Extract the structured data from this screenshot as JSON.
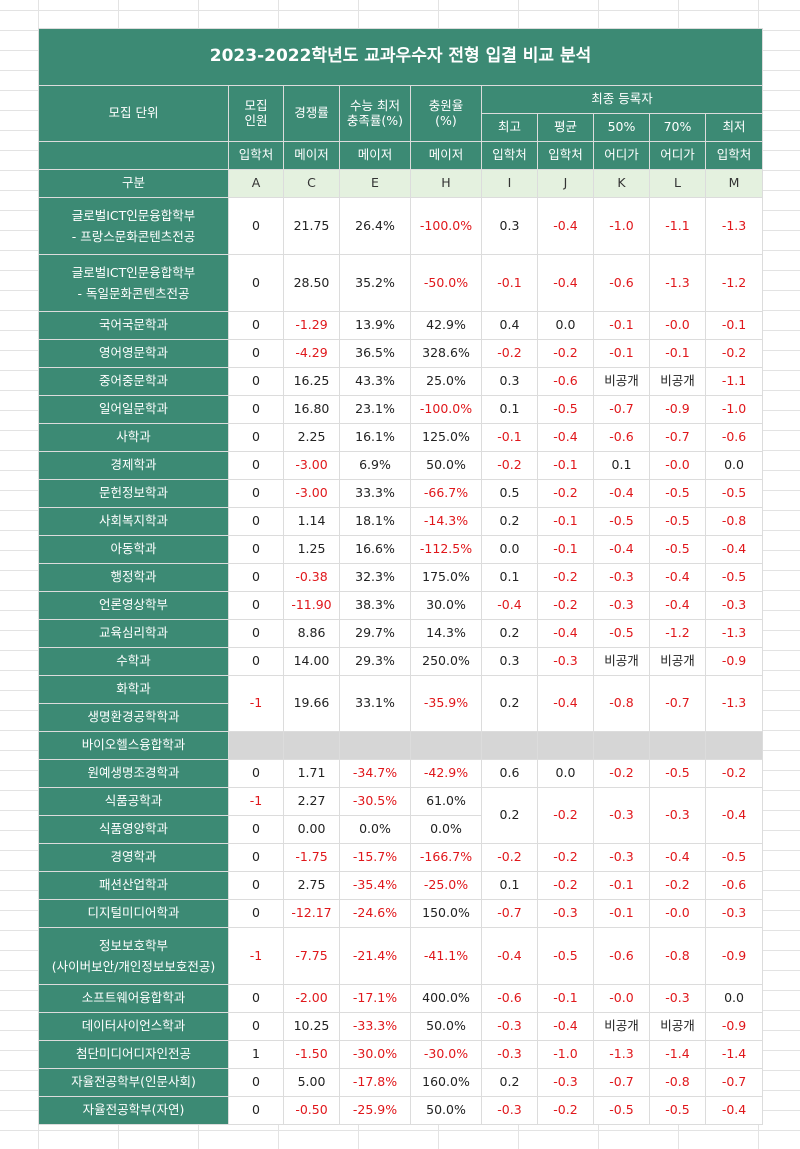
{
  "title": "2023-2022학년도 교과우수자 전형 입결 비교 분석",
  "header": {
    "unit_label": "모집 단위",
    "quota": "모집\n인원",
    "competition": "경쟁률",
    "csat": "수능 최저\n충족률(%)",
    "replenish": "충원율\n(%)",
    "final": "최종 등록자",
    "final_cols": [
      "최고",
      "평균",
      "50%",
      "70%",
      "최저"
    ],
    "source_label": "입학처",
    "source_row": [
      "입학처",
      "메이저",
      "메이저",
      "메이저",
      "입학처",
      "입학처",
      "어디가",
      "어디가",
      "입학처"
    ],
    "category_label": "구분",
    "letters": [
      "A",
      "C",
      "E",
      "H",
      "I",
      "J",
      "K",
      "L",
      "M"
    ]
  },
  "rows": [
    {
      "name": "글로벌ICT인문융합학부\n- 프랑스문화콘텐츠전공",
      "cells": [
        "0",
        "21.75",
        "26.4%",
        "-100.0%",
        "0.3",
        "-0.4",
        "-1.0",
        "-1.1",
        "-1.3"
      ]
    },
    {
      "name": "글로벌ICT인문융합학부\n- 독일문화콘텐츠전공",
      "cells": [
        "0",
        "28.50",
        "35.2%",
        "-50.0%",
        "-0.1",
        "-0.4",
        "-0.6",
        "-1.3",
        "-1.2"
      ]
    },
    {
      "name": "국어국문학과",
      "cells": [
        "0",
        "-1.29",
        "13.9%",
        "42.9%",
        "0.4",
        "0.0",
        "-0.1",
        "-0.0",
        "-0.1"
      ]
    },
    {
      "name": "영어영문학과",
      "cells": [
        "0",
        "-4.29",
        "36.5%",
        "328.6%",
        "-0.2",
        "-0.2",
        "-0.1",
        "-0.1",
        "-0.2"
      ]
    },
    {
      "name": "중어중문학과",
      "cells": [
        "0",
        "16.25",
        "43.3%",
        "25.0%",
        "0.3",
        "-0.6",
        "비공개",
        "비공개",
        "-1.1"
      ]
    },
    {
      "name": "일어일문학과",
      "cells": [
        "0",
        "16.80",
        "23.1%",
        "-100.0%",
        "0.1",
        "-0.5",
        "-0.7",
        "-0.9",
        "-1.0"
      ]
    },
    {
      "name": "사학과",
      "cells": [
        "0",
        "2.25",
        "16.1%",
        "125.0%",
        "-0.1",
        "-0.4",
        "-0.6",
        "-0.7",
        "-0.6"
      ]
    },
    {
      "name": "경제학과",
      "cells": [
        "0",
        "-3.00",
        "6.9%",
        "50.0%",
        "-0.2",
        "-0.1",
        "0.1",
        "-0.0",
        "0.0"
      ]
    },
    {
      "name": "문헌정보학과",
      "cells": [
        "0",
        "-3.00",
        "33.3%",
        "-66.7%",
        "0.5",
        "-0.2",
        "-0.4",
        "-0.5",
        "-0.5"
      ]
    },
    {
      "name": "사회복지학과",
      "cells": [
        "0",
        "1.14",
        "18.1%",
        "-14.3%",
        "0.2",
        "-0.1",
        "-0.5",
        "-0.5",
        "-0.8"
      ]
    },
    {
      "name": "아동학과",
      "cells": [
        "0",
        "1.25",
        "16.6%",
        "-112.5%",
        "0.0",
        "-0.1",
        "-0.4",
        "-0.5",
        "-0.4"
      ]
    },
    {
      "name": "행정학과",
      "cells": [
        "0",
        "-0.38",
        "32.3%",
        "175.0%",
        "0.1",
        "-0.2",
        "-0.3",
        "-0.4",
        "-0.5"
      ]
    },
    {
      "name": "언론영상학부",
      "cells": [
        "0",
        "-11.90",
        "38.3%",
        "30.0%",
        "-0.4",
        "-0.2",
        "-0.3",
        "-0.4",
        "-0.3"
      ]
    },
    {
      "name": "교육심리학과",
      "cells": [
        "0",
        "8.86",
        "29.7%",
        "14.3%",
        "0.2",
        "-0.4",
        "-0.5",
        "-1.2",
        "-1.3"
      ]
    },
    {
      "name": "수학과",
      "cells": [
        "0",
        "14.00",
        "29.3%",
        "250.0%",
        "0.3",
        "-0.3",
        "비공개",
        "비공개",
        "-0.9"
      ]
    },
    {
      "name": "화학과",
      "merged_label": "생명환경공학학과",
      "cells": [
        "-1",
        "19.66",
        "33.1%",
        "-35.9%",
        "0.2",
        "-0.4",
        "-0.8",
        "-0.7",
        "-1.3"
      ]
    },
    {
      "name": "바이오헬스융합학과",
      "gray": true
    },
    {
      "name": "원예생명조경학과",
      "cells": [
        "0",
        "1.71",
        "-34.7%",
        "-42.9%",
        "0.6",
        "0.0",
        "-0.2",
        "-0.5",
        "-0.2"
      ]
    },
    {
      "name": "식품공학과",
      "cells_a": [
        "-1",
        "2.27",
        "-30.5%",
        "61.0%"
      ],
      "shared": [
        "0.2",
        "-0.2",
        "-0.3",
        "-0.3",
        "-0.4"
      ]
    },
    {
      "name": "식품영양학과",
      "cells_a": [
        "0",
        "0.00",
        "0.0%",
        "0.0%"
      ]
    },
    {
      "name": "경영학과",
      "cells": [
        "0",
        "-1.75",
        "-15.7%",
        "-166.7%",
        "-0.2",
        "-0.2",
        "-0.3",
        "-0.4",
        "-0.5"
      ]
    },
    {
      "name": "패션산업학과",
      "cells": [
        "0",
        "2.75",
        "-35.4%",
        "-25.0%",
        "0.1",
        "-0.2",
        "-0.1",
        "-0.2",
        "-0.6"
      ]
    },
    {
      "name": "디지털미디어학과",
      "cells": [
        "0",
        "-12.17",
        "-24.6%",
        "150.0%",
        "-0.7",
        "-0.3",
        "-0.1",
        "-0.0",
        "-0.3"
      ]
    },
    {
      "name": "정보보호학부\n(사이버보안/개인정보보호전공)",
      "cells": [
        "-1",
        "-7.75",
        "-21.4%",
        "-41.1%",
        "-0.4",
        "-0.5",
        "-0.6",
        "-0.8",
        "-0.9"
      ]
    },
    {
      "name": "소프트웨어융합학과",
      "cells": [
        "0",
        "-2.00",
        "-17.1%",
        "400.0%",
        "-0.6",
        "-0.1",
        "-0.0",
        "-0.3",
        "0.0"
      ]
    },
    {
      "name": "데이터사이언스학과",
      "cells": [
        "0",
        "10.25",
        "-33.3%",
        "50.0%",
        "-0.3",
        "-0.4",
        "비공개",
        "비공개",
        "-0.9"
      ]
    },
    {
      "name": "첨단미디어디자인전공",
      "cells": [
        "1",
        "-1.50",
        "-30.0%",
        "-30.0%",
        "-0.3",
        "-1.0",
        "-1.3",
        "-1.4",
        "-1.4"
      ]
    },
    {
      "name": "자율전공학부(인문사회)",
      "cells": [
        "0",
        "5.00",
        "-17.8%",
        "160.0%",
        "0.2",
        "-0.3",
        "-0.7",
        "-0.8",
        "-0.7"
      ]
    },
    {
      "name": "자율전공학부(자연)",
      "cells": [
        "0",
        "-0.50",
        "-25.9%",
        "50.0%",
        "-0.3",
        "-0.2",
        "-0.5",
        "-0.5",
        "-0.4"
      ]
    }
  ],
  "colors": {
    "header_bg": "#3c8a74",
    "subheader_bg": "#e4f1df",
    "negative_text": "#e0171b",
    "gray_row": "#d6d6d6"
  }
}
